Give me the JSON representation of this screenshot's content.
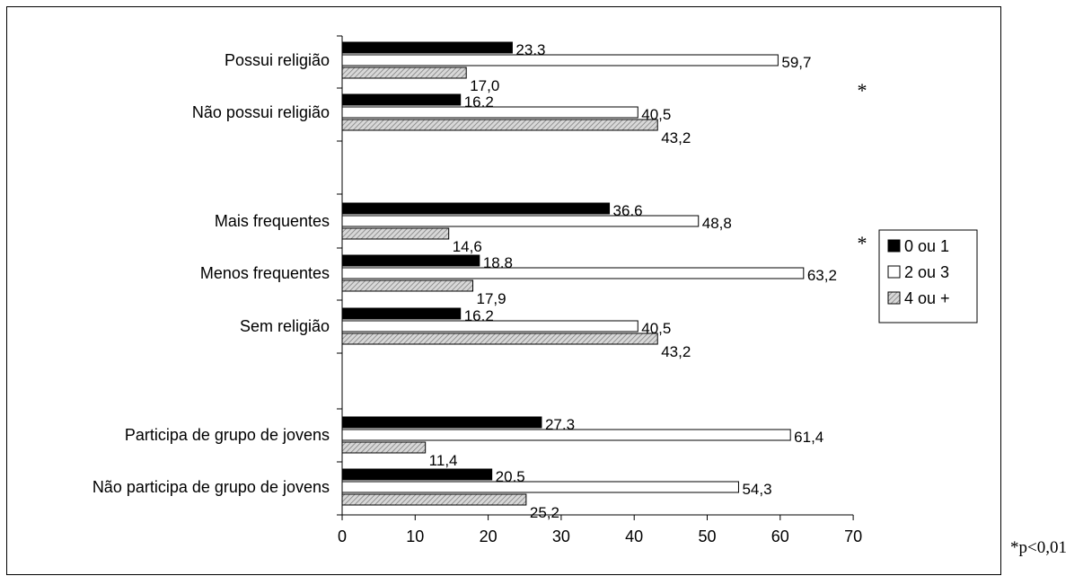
{
  "chart_data": {
    "type": "bar",
    "orientation": "horizontal",
    "xlim": [
      0,
      70
    ],
    "xticks": [
      0,
      10,
      20,
      30,
      40,
      50,
      60,
      70
    ],
    "legend_position": "right",
    "series": [
      {
        "name": "0 ou 1",
        "color": "#000000",
        "pattern": "solid"
      },
      {
        "name": "2 ou 3",
        "color": "#ffffff",
        "pattern": "outline"
      },
      {
        "name": "4 ou +",
        "color": "#c0c0c0",
        "pattern": "hatched"
      }
    ],
    "groups": [
      {
        "significance": "*",
        "categories": [
          {
            "label": "Possui religião",
            "values": [
              23.3,
              59.7,
              17.0
            ],
            "value_labels": [
              "23,3",
              "59,7",
              "17,0"
            ]
          },
          {
            "label": "Não possui religião",
            "values": [
              16.2,
              40.5,
              43.2
            ],
            "value_labels": [
              "16,2",
              "40,5",
              "43,2"
            ]
          }
        ]
      },
      {
        "significance": "*",
        "categories": [
          {
            "label": "Mais frequentes",
            "values": [
              36.6,
              48.8,
              14.6
            ],
            "value_labels": [
              "36,6",
              "48,8",
              "14,6"
            ]
          },
          {
            "label": "Menos frequentes",
            "values": [
              18.8,
              63.2,
              17.9
            ],
            "value_labels": [
              "18,8",
              "63,2",
              "17,9"
            ]
          },
          {
            "label": "Sem religião",
            "values": [
              16.2,
              40.5,
              43.2
            ],
            "value_labels": [
              "16,2",
              "40,5",
              "43,2"
            ]
          }
        ]
      },
      {
        "significance": "",
        "categories": [
          {
            "label": "Participa de grupo de jovens",
            "values": [
              27.3,
              61.4,
              11.4
            ],
            "value_labels": [
              "27,3",
              "61,4",
              "11,4"
            ]
          },
          {
            "label": "Não participa de grupo de jovens",
            "values": [
              20.5,
              54.3,
              25.2
            ],
            "value_labels": [
              "20,5",
              "54,3",
              "25,2"
            ]
          }
        ]
      }
    ],
    "tick_labels": [
      "0",
      "10",
      "20",
      "30",
      "40",
      "50",
      "60",
      "70"
    ],
    "footnote": "*p<0,01"
  }
}
